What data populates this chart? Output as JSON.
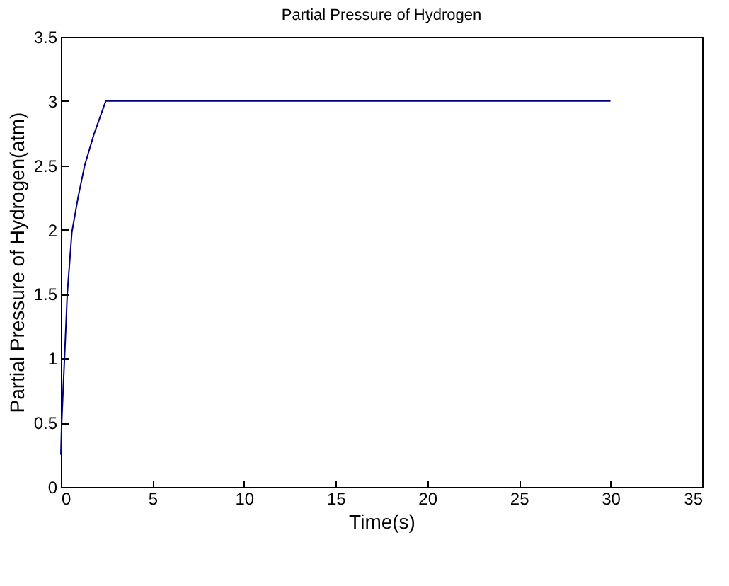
{
  "chart_data": {
    "type": "line",
    "title": "Partial Pressure of Hydrogen",
    "xlabel": "Time(s)",
    "ylabel": "Partial Pressure of Hydrogen(atm)",
    "x": [
      0,
      0.05,
      0.2,
      0.35,
      0.6,
      0.95,
      1.3,
      1.8,
      2.45,
      30
    ],
    "series": [
      {
        "color": "#00007f",
        "values": [
          0.25,
          0.52,
          1.0,
          1.5,
          1.98,
          2.26,
          2.5,
          2.74,
          3,
          3
        ]
      }
    ],
    "xlim": [
      0,
      35
    ],
    "xticks": [
      0,
      5,
      10,
      15,
      20,
      25,
      30,
      35
    ],
    "ylim": [
      0,
      3.5
    ],
    "yticks": [
      0,
      0.5,
      1,
      1.5,
      2,
      2.5,
      3,
      3.5
    ],
    "grid": false,
    "marker": "none",
    "line_style": "solid"
  }
}
